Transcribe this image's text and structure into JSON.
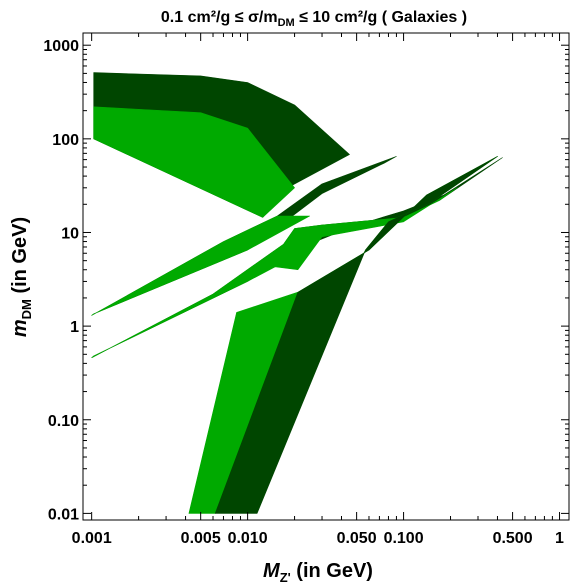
{
  "chart_data": {
    "type": "area",
    "title": "0.1 cm²/g ≤ σ/m",
    "title_sub": "DM",
    "title_rest": " ≤ 10 cm²/g ( Galaxies )",
    "xlabel_main": "M",
    "xlabel_sub": "Z'",
    "xlabel_rest": " (in GeV)",
    "ylabel_main": "m",
    "ylabel_sub": "DM",
    "ylabel_rest": " (in GeV)",
    "x_scale": "log",
    "y_scale": "log",
    "xlim": [
      0.00088,
      1.15
    ],
    "ylim": [
      0.0085,
      1350
    ],
    "x_tick_labels": [
      {
        "value": 0.001,
        "label": "0.001"
      },
      {
        "value": 0.005,
        "label": "0.005"
      },
      {
        "value": 0.01,
        "label": "0.010"
      },
      {
        "value": 0.05,
        "label": "0.050"
      },
      {
        "value": 0.1,
        "label": "0.100"
      },
      {
        "value": 0.5,
        "label": "0.500"
      },
      {
        "value": 1,
        "label": "1"
      }
    ],
    "x_minor_ticks": [
      0.002,
      0.003,
      0.004,
      0.006,
      0.007,
      0.008,
      0.009,
      0.02,
      0.03,
      0.04,
      0.06,
      0.07,
      0.08,
      0.09,
      0.2,
      0.3,
      0.4,
      0.6,
      0.7,
      0.8,
      0.9
    ],
    "y_tick_labels": [
      {
        "value": 0.01,
        "label": "0.01"
      },
      {
        "value": 0.1,
        "label": "0.10"
      },
      {
        "value": 1,
        "label": "1"
      },
      {
        "value": 10,
        "label": "10"
      },
      {
        "value": 100,
        "label": "100"
      },
      {
        "value": 1000,
        "label": "1000"
      }
    ],
    "grid": false,
    "colors": {
      "dark_band": "#004600",
      "light_band": "#00AA00",
      "outline": "#000000"
    },
    "regions": [
      {
        "band": "dark",
        "points": [
          [
            0.00103,
            510
          ],
          [
            0.005,
            470
          ],
          [
            0.01,
            400
          ],
          [
            0.02,
            230
          ],
          [
            0.045,
            68
          ],
          [
            0.018,
            30
          ],
          [
            0.0125,
            14.5
          ],
          [
            0.00103,
            100
          ]
        ]
      },
      {
        "band": "light",
        "points": [
          [
            0.00103,
            220
          ],
          [
            0.005,
            190
          ],
          [
            0.01,
            130
          ],
          [
            0.02,
            30
          ],
          [
            0.0125,
            14.5
          ],
          [
            0.00103,
            100
          ]
        ]
      },
      {
        "band": "dark",
        "points": [
          [
            0.001,
            1.3
          ],
          [
            0.00103,
            1.35
          ],
          [
            0.01,
            6.5
          ],
          [
            0.03,
            26
          ],
          [
            0.075,
            55
          ],
          [
            0.09,
            65
          ],
          [
            0.03,
            33
          ],
          [
            0.0155,
            15
          ],
          [
            0.007,
            8
          ],
          [
            0.001,
            1.3
          ]
        ]
      },
      {
        "band": "light",
        "points": [
          [
            0.001,
            1.3
          ],
          [
            0.00103,
            1.35
          ],
          [
            0.01,
            6.5
          ],
          [
            0.025,
            15
          ],
          [
            0.0155,
            15
          ],
          [
            0.007,
            8
          ],
          [
            0.001,
            1.3
          ]
        ]
      },
      {
        "band": "dark",
        "points": [
          [
            0.001,
            0.46
          ],
          [
            0.00103,
            0.48
          ],
          [
            0.01,
            3
          ],
          [
            0.02,
            6.5
          ],
          [
            0.05,
            12
          ],
          [
            0.1,
            17
          ],
          [
            0.18,
            25
          ],
          [
            0.43,
            63
          ],
          [
            0.17,
            22
          ],
          [
            0.1,
            14.5
          ],
          [
            0.03,
            12
          ],
          [
            0.02,
            11
          ],
          [
            0.017,
            7.5
          ],
          [
            0.006,
            2.2
          ],
          [
            0.001,
            0.46
          ]
        ]
      },
      {
        "band": "light",
        "points": [
          [
            0.001,
            0.46
          ],
          [
            0.00103,
            0.48
          ],
          [
            0.01,
            3
          ],
          [
            0.015,
            4.3
          ],
          [
            0.021,
            4
          ],
          [
            0.03,
            9
          ],
          [
            0.1,
            13
          ],
          [
            0.22,
            30
          ],
          [
            0.17,
            22
          ],
          [
            0.1,
            14.5
          ],
          [
            0.03,
            12
          ],
          [
            0.02,
            11
          ],
          [
            0.017,
            7.5
          ],
          [
            0.006,
            2.2
          ],
          [
            0.001,
            0.46
          ]
        ]
      },
      {
        "band": "light",
        "points": [
          [
            0.0042,
            0.01
          ],
          [
            0.0085,
            1.4
          ],
          [
            0.021,
            2.3
          ],
          [
            0.027,
            2.95
          ],
          [
            0.06,
            6.5
          ],
          [
            0.14,
            25
          ],
          [
            0.4,
            65
          ],
          [
            0.15,
            21
          ],
          [
            0.08,
            13
          ],
          [
            0.057,
            6.5
          ],
          [
            0.0062,
            0.01
          ]
        ]
      },
      {
        "band": "dark",
        "points": [
          [
            0.0062,
            0.01
          ],
          [
            0.021,
            2.3
          ],
          [
            0.027,
            2.95
          ],
          [
            0.06,
            6.5
          ],
          [
            0.14,
            25
          ],
          [
            0.4,
            65
          ],
          [
            0.15,
            21
          ],
          [
            0.08,
            13
          ],
          [
            0.057,
            6.5
          ],
          [
            0.0115,
            0.01
          ]
        ]
      }
    ]
  }
}
